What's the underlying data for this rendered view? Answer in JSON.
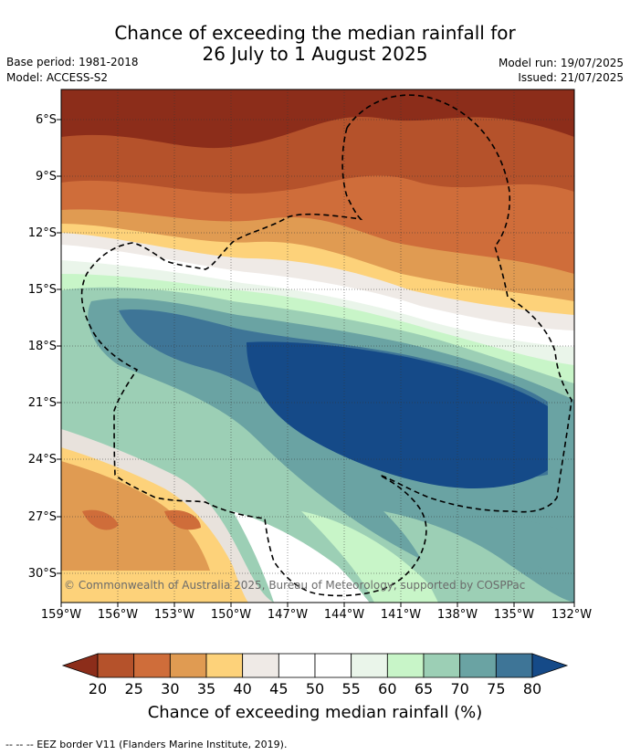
{
  "title": {
    "line1": "Chance of exceeding the median rainfall for",
    "line2": "26 July to 1 August 2025"
  },
  "meta": {
    "base_period": "Base period: 1981-2018",
    "model": "Model: ACCESS-S2",
    "model_run": "Model run: 19/07/2025",
    "issued": "Issued: 21/07/2025"
  },
  "axes": {
    "lat_labels": [
      "6°S",
      "9°S",
      "12°S",
      "15°S",
      "18°S",
      "21°S",
      "24°S",
      "27°S",
      "30°S"
    ],
    "lon_labels": [
      "159°W",
      "156°W",
      "153°W",
      "150°W",
      "147°W",
      "144°W",
      "141°W",
      "138°W",
      "135°W",
      "132°W"
    ]
  },
  "map": {
    "copyright": "© Commonwealth of Australia 2025, Bureau of Meteorology, supported by COSPPac"
  },
  "colorbar": {
    "ticks": [
      "20",
      "25",
      "30",
      "35",
      "40",
      "45",
      "50",
      "55",
      "60",
      "65",
      "70",
      "75",
      "80"
    ],
    "colors": [
      "#8c2d1a",
      "#b5522b",
      "#cf6d3a",
      "#e09b52",
      "#fdd27a",
      "#efeae6",
      "#ffffff",
      "#ffffff",
      "#eaf5ea",
      "#c8f5c8",
      "#9ccfb5",
      "#6aa3a3",
      "#3e7597",
      "#154a88"
    ],
    "label": "Chance of exceeding median rainfall (%)"
  },
  "footer": "--  --  -- EEZ border V11 (Flanders Marine Institute, 2019)."
}
